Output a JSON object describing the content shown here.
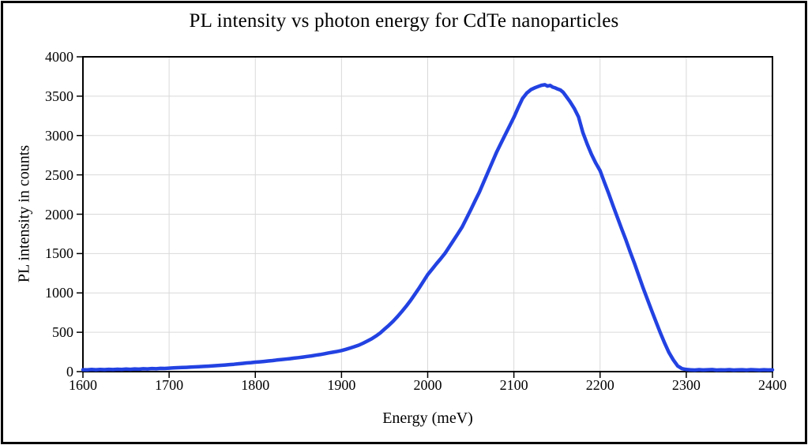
{
  "style": {
    "background": "#ffffff",
    "figure_border_color": "#000000",
    "plot_border_color": "#000000",
    "grid_color": "#d9d9d9",
    "text_color": "#000000",
    "line_color": "#2342e2"
  },
  "chart_data": {
    "type": "line",
    "title": "PL intensity vs photon energy for CdTe nanoparticles",
    "xlabel": "Energy (meV)",
    "ylabel": "PL intensity in counts",
    "xlim": [
      1600,
      2400
    ],
    "ylim": [
      0,
      4000
    ],
    "x_ticks": [
      1600,
      1700,
      1800,
      1900,
      2000,
      2100,
      2200,
      2300,
      2400
    ],
    "y_ticks": [
      0,
      500,
      1000,
      1500,
      2000,
      2500,
      3000,
      3500,
      4000
    ],
    "grid": true,
    "legend": false,
    "series": [
      {
        "name": "PL intensity",
        "color": "#2342e2",
        "points": [
          [
            1600,
            24
          ],
          [
            1605,
            22
          ],
          [
            1610,
            27
          ],
          [
            1615,
            24
          ],
          [
            1620,
            28
          ],
          [
            1625,
            25
          ],
          [
            1630,
            29
          ],
          [
            1635,
            26
          ],
          [
            1640,
            30
          ],
          [
            1645,
            28
          ],
          [
            1650,
            33
          ],
          [
            1655,
            29
          ],
          [
            1660,
            34
          ],
          [
            1665,
            31
          ],
          [
            1670,
            36
          ],
          [
            1675,
            34
          ],
          [
            1680,
            39
          ],
          [
            1685,
            36
          ],
          [
            1690,
            41
          ],
          [
            1695,
            40
          ],
          [
            1700,
            44
          ],
          [
            1705,
            47
          ],
          [
            1710,
            50
          ],
          [
            1715,
            52
          ],
          [
            1720,
            54
          ],
          [
            1725,
            57
          ],
          [
            1730,
            60
          ],
          [
            1735,
            63
          ],
          [
            1740,
            66
          ],
          [
            1745,
            69
          ],
          [
            1750,
            72
          ],
          [
            1755,
            76
          ],
          [
            1760,
            80
          ],
          [
            1765,
            84
          ],
          [
            1770,
            89
          ],
          [
            1775,
            93
          ],
          [
            1780,
            99
          ],
          [
            1785,
            104
          ],
          [
            1790,
            110
          ],
          [
            1795,
            114
          ],
          [
            1800,
            120
          ],
          [
            1805,
            124
          ],
          [
            1810,
            129
          ],
          [
            1815,
            135
          ],
          [
            1820,
            140
          ],
          [
            1825,
            147
          ],
          [
            1830,
            152
          ],
          [
            1835,
            158
          ],
          [
            1840,
            164
          ],
          [
            1845,
            171
          ],
          [
            1850,
            177
          ],
          [
            1855,
            184
          ],
          [
            1860,
            192
          ],
          [
            1865,
            200
          ],
          [
            1870,
            209
          ],
          [
            1875,
            217
          ],
          [
            1880,
            227
          ],
          [
            1885,
            238
          ],
          [
            1890,
            247
          ],
          [
            1895,
            257
          ],
          [
            1900,
            268
          ],
          [
            1905,
            283
          ],
          [
            1910,
            300
          ],
          [
            1915,
            317
          ],
          [
            1920,
            336
          ],
          [
            1925,
            361
          ],
          [
            1930,
            388
          ],
          [
            1935,
            417
          ],
          [
            1940,
            452
          ],
          [
            1945,
            492
          ],
          [
            1950,
            540
          ],
          [
            1955,
            588
          ],
          [
            1960,
            642
          ],
          [
            1965,
            700
          ],
          [
            1970,
            764
          ],
          [
            1975,
            830
          ],
          [
            1980,
            902
          ],
          [
            1985,
            980
          ],
          [
            1990,
            1062
          ],
          [
            1995,
            1146
          ],
          [
            2000,
            1232
          ],
          [
            2005,
            1300
          ],
          [
            2010,
            1368
          ],
          [
            2015,
            1434
          ],
          [
            2020,
            1502
          ],
          [
            2025,
            1585
          ],
          [
            2030,
            1668
          ],
          [
            2035,
            1752
          ],
          [
            2040,
            1840
          ],
          [
            2045,
            1948
          ],
          [
            2050,
            2058
          ],
          [
            2055,
            2170
          ],
          [
            2060,
            2282
          ],
          [
            2065,
            2408
          ],
          [
            2070,
            2536
          ],
          [
            2075,
            2662
          ],
          [
            2080,
            2790
          ],
          [
            2085,
            2902
          ],
          [
            2090,
            3012
          ],
          [
            2095,
            3122
          ],
          [
            2100,
            3230
          ],
          [
            2105,
            3355
          ],
          [
            2110,
            3470
          ],
          [
            2115,
            3540
          ],
          [
            2120,
            3585
          ],
          [
            2124,
            3605
          ],
          [
            2128,
            3622
          ],
          [
            2132,
            3638
          ],
          [
            2136,
            3645
          ],
          [
            2139,
            3628
          ],
          [
            2142,
            3636
          ],
          [
            2145,
            3615
          ],
          [
            2148,
            3605
          ],
          [
            2151,
            3590
          ],
          [
            2154,
            3578
          ],
          [
            2157,
            3552
          ],
          [
            2160,
            3508
          ],
          [
            2165,
            3432
          ],
          [
            2170,
            3345
          ],
          [
            2175,
            3235
          ],
          [
            2180,
            3040
          ],
          [
            2185,
            2892
          ],
          [
            2190,
            2762
          ],
          [
            2195,
            2650
          ],
          [
            2200,
            2552
          ],
          [
            2205,
            2406
          ],
          [
            2210,
            2262
          ],
          [
            2215,
            2110
          ],
          [
            2220,
            1962
          ],
          [
            2225,
            1816
          ],
          [
            2230,
            1672
          ],
          [
            2235,
            1520
          ],
          [
            2240,
            1372
          ],
          [
            2245,
            1216
          ],
          [
            2250,
            1062
          ],
          [
            2255,
            915
          ],
          [
            2260,
            772
          ],
          [
            2265,
            630
          ],
          [
            2270,
            492
          ],
          [
            2275,
            360
          ],
          [
            2280,
            242
          ],
          [
            2285,
            148
          ],
          [
            2290,
            72
          ],
          [
            2295,
            38
          ],
          [
            2300,
            27
          ],
          [
            2305,
            23
          ],
          [
            2310,
            20
          ],
          [
            2315,
            25
          ],
          [
            2320,
            21
          ],
          [
            2325,
            24
          ],
          [
            2330,
            26
          ],
          [
            2335,
            20
          ],
          [
            2340,
            23
          ],
          [
            2345,
            21
          ],
          [
            2350,
            25
          ],
          [
            2355,
            20
          ],
          [
            2360,
            22
          ],
          [
            2365,
            24
          ],
          [
            2370,
            20
          ],
          [
            2375,
            25
          ],
          [
            2380,
            22
          ],
          [
            2385,
            20
          ],
          [
            2390,
            24
          ],
          [
            2395,
            21
          ],
          [
            2400,
            23
          ]
        ]
      }
    ]
  }
}
